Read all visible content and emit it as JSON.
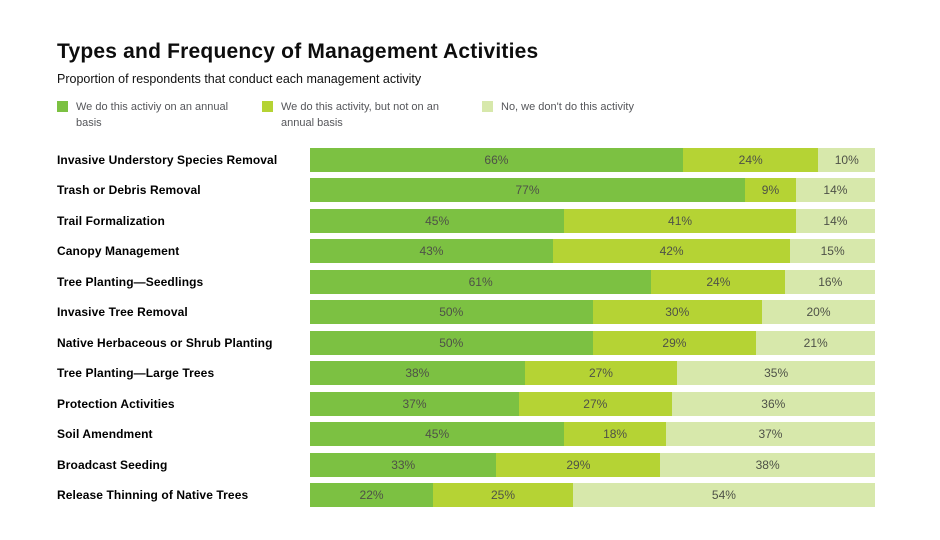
{
  "header": {
    "title": "Types and Frequency of Management Activities",
    "subtitle": "Proportion of respondents that conduct each management activity"
  },
  "legend": {
    "items": [
      {
        "label": "We do this activiy on an annual basis",
        "color": "#7cc142"
      },
      {
        "label": "We do this activity, but not on an annual basis",
        "color": "#b5d334"
      },
      {
        "label": "No, we don't do this activity",
        "color": "#d7e8ab"
      }
    ]
  },
  "chart_data": {
    "type": "bar",
    "orientation": "horizontal",
    "stacked": true,
    "title": "Types and Frequency of Management Activities",
    "subtitle": "Proportion of respondents that conduct each management activity",
    "xlabel": "",
    "ylabel": "",
    "xlim": [
      0,
      100
    ],
    "grid": false,
    "legend_position": "top",
    "value_suffix": "%",
    "categories": [
      "Invasive Understory Species Removal",
      "Trash or Debris Removal",
      "Trail Formalization",
      "Canopy Management",
      "Tree Planting—Seedlings",
      "Invasive Tree Removal",
      "Native Herbaceous or Shrub Planting",
      "Tree Planting—Large Trees",
      "Protection Activities",
      "Soil Amendment",
      "Broadcast Seeding",
      "Release Thinning of Native Trees"
    ],
    "series": [
      {
        "name": "We do this activiy on an annual basis",
        "color": "#7cc142",
        "values": [
          66,
          77,
          45,
          43,
          61,
          50,
          50,
          38,
          37,
          45,
          33,
          22
        ]
      },
      {
        "name": "We do this activity, but not on an annual basis",
        "color": "#b5d334",
        "values": [
          24,
          9,
          41,
          42,
          24,
          30,
          29,
          27,
          27,
          18,
          29,
          25
        ]
      },
      {
        "name": "No, we don't do this activity",
        "color": "#d7e8ab",
        "values": [
          10,
          14,
          14,
          15,
          16,
          20,
          21,
          35,
          36,
          37,
          38,
          54
        ]
      }
    ]
  },
  "colors": {
    "annual": "#7cc142",
    "not_annual": "#b5d334",
    "none": "#d7e8ab",
    "bar_value_text": "#4e5147",
    "category_label_text": "#000000",
    "legend_text": "#55565a",
    "background": "#ffffff"
  }
}
